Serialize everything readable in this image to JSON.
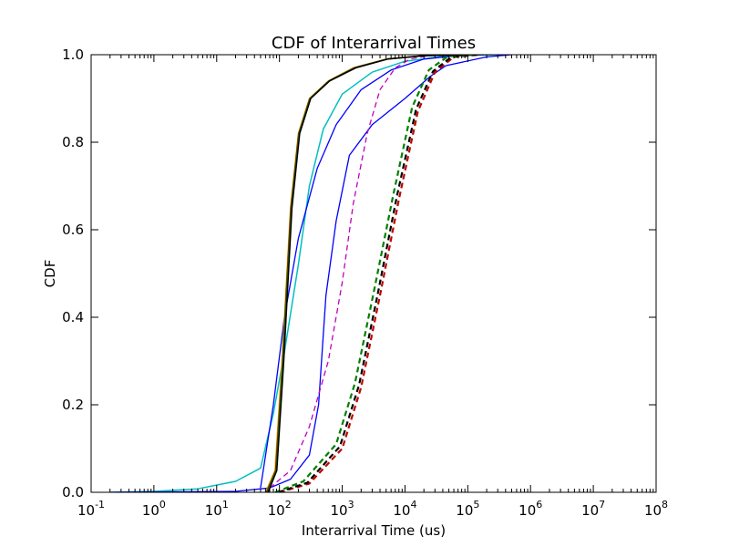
{
  "chart_data": {
    "type": "line",
    "title": "CDF of Interarrival Times",
    "xlabel": "Interarrival Time (us)",
    "ylabel": "CDF",
    "xscale": "log",
    "xlim": [
      0.1,
      100000000
    ],
    "ylim": [
      0,
      1
    ],
    "grid": false,
    "x_ticks": [
      {
        "value": 0.1,
        "base": "10",
        "exp": "-1"
      },
      {
        "value": 1,
        "base": "10",
        "exp": "0"
      },
      {
        "value": 10,
        "base": "10",
        "exp": "1"
      },
      {
        "value": 100,
        "base": "10",
        "exp": "2"
      },
      {
        "value": 1000,
        "base": "10",
        "exp": "3"
      },
      {
        "value": 10000,
        "base": "10",
        "exp": "4"
      },
      {
        "value": 100000,
        "base": "10",
        "exp": "5"
      },
      {
        "value": 1000000,
        "base": "10",
        "exp": "6"
      },
      {
        "value": 10000000,
        "base": "10",
        "exp": "7"
      },
      {
        "value": 100000000,
        "base": "10",
        "exp": "8"
      }
    ],
    "y_ticks": [
      {
        "value": 0.0,
        "label": "0.0"
      },
      {
        "value": 0.2,
        "label": "0.2"
      },
      {
        "value": 0.4,
        "label": "0.4"
      },
      {
        "value": 0.6,
        "label": "0.6"
      },
      {
        "value": 0.8,
        "label": "0.8"
      },
      {
        "value": 1.0,
        "label": "1.0"
      }
    ],
    "series": [
      {
        "color": "#00bfbf",
        "style": "solid",
        "width": 1.5,
        "points": [
          [
            0.2,
            0
          ],
          [
            1,
            0.002
          ],
          [
            5,
            0.008
          ],
          [
            20,
            0.025
          ],
          [
            50,
            0.055
          ],
          [
            80,
            0.18
          ],
          [
            120,
            0.32
          ],
          [
            200,
            0.52
          ],
          [
            300,
            0.7
          ],
          [
            500,
            0.83
          ],
          [
            1000,
            0.91
          ],
          [
            3000,
            0.96
          ],
          [
            10000,
            0.985
          ],
          [
            50000,
            0.998
          ],
          [
            300000,
            1
          ]
        ]
      },
      {
        "color": "#0000ff",
        "style": "solid",
        "width": 1.3,
        "points": [
          [
            50,
            0.01
          ],
          [
            80,
            0.2
          ],
          [
            120,
            0.4
          ],
          [
            200,
            0.58
          ],
          [
            400,
            0.74
          ],
          [
            800,
            0.84
          ],
          [
            2000,
            0.92
          ],
          [
            6000,
            0.965
          ],
          [
            20000,
            0.99
          ],
          [
            80000,
            0.999
          ],
          [
            200000,
            1
          ]
        ]
      },
      {
        "color": "#0000ff",
        "style": "solid",
        "width": 1.3,
        "points": [
          [
            0.2,
            0
          ],
          [
            20,
            0.002
          ],
          [
            70,
            0.01
          ],
          [
            150,
            0.03
          ],
          [
            300,
            0.085
          ],
          [
            420,
            0.2
          ],
          [
            550,
            0.45
          ],
          [
            800,
            0.62
          ],
          [
            1300,
            0.77
          ],
          [
            3000,
            0.84
          ],
          [
            10000,
            0.9
          ],
          [
            25000,
            0.95
          ],
          [
            45000,
            0.975
          ],
          [
            200000,
            0.995
          ],
          [
            500000,
            1
          ]
        ]
      },
      {
        "color": "#bf00bf",
        "style": "dashed",
        "width": 1.3,
        "points": [
          [
            70,
            0.01
          ],
          [
            150,
            0.05
          ],
          [
            300,
            0.15
          ],
          [
            600,
            0.3
          ],
          [
            1000,
            0.48
          ],
          [
            1500,
            0.66
          ],
          [
            2500,
            0.82
          ],
          [
            4000,
            0.92
          ],
          [
            7000,
            0.97
          ],
          [
            12000,
            0.99
          ],
          [
            30000,
            1
          ]
        ]
      },
      {
        "color": "#bf0000",
        "style": "dashed",
        "width": 2.2,
        "points": [
          [
            100,
            0
          ],
          [
            300,
            0.02
          ],
          [
            1000,
            0.1
          ],
          [
            2000,
            0.24
          ],
          [
            4000,
            0.45
          ],
          [
            8000,
            0.67
          ],
          [
            16000,
            0.87
          ],
          [
            30000,
            0.96
          ],
          [
            60000,
            0.995
          ],
          [
            150000,
            1
          ]
        ]
      },
      {
        "color": "#000000",
        "style": "dashed",
        "width": 2.2,
        "points": [
          [
            95,
            0
          ],
          [
            280,
            0.022
          ],
          [
            920,
            0.105
          ],
          [
            1850,
            0.245
          ],
          [
            3700,
            0.455
          ],
          [
            7400,
            0.675
          ],
          [
            15000,
            0.875
          ],
          [
            28000,
            0.962
          ],
          [
            55000,
            0.995
          ],
          [
            140000,
            1
          ]
        ]
      },
      {
        "color": "#008000",
        "style": "dashed",
        "width": 2.2,
        "points": [
          [
            85,
            0
          ],
          [
            240,
            0.025
          ],
          [
            800,
            0.11
          ],
          [
            1600,
            0.25
          ],
          [
            3200,
            0.46
          ],
          [
            6500,
            0.68
          ],
          [
            13000,
            0.88
          ],
          [
            24000,
            0.965
          ],
          [
            48000,
            0.996
          ],
          [
            120000,
            1
          ]
        ]
      },
      {
        "color": "#bfbf00",
        "style": "solid",
        "width": 1.5,
        "points": [
          [
            60,
            0
          ],
          [
            85,
            0.05
          ],
          [
            110,
            0.3
          ],
          [
            150,
            0.65
          ],
          [
            200,
            0.82
          ],
          [
            300,
            0.9
          ],
          [
            600,
            0.94
          ],
          [
            1500,
            0.97
          ],
          [
            5000,
            0.99
          ],
          [
            20000,
            0.998
          ],
          [
            100000,
            1
          ]
        ]
      },
      {
        "color": "#bf0000",
        "style": "solid",
        "width": 1.5,
        "points": [
          [
            62,
            0
          ],
          [
            87,
            0.05
          ],
          [
            112,
            0.3
          ],
          [
            152,
            0.65
          ],
          [
            203,
            0.82
          ],
          [
            305,
            0.9
          ],
          [
            610,
            0.94
          ],
          [
            1550,
            0.97
          ],
          [
            5100,
            0.99
          ],
          [
            20000,
            0.998
          ],
          [
            100000,
            1
          ]
        ]
      },
      {
        "color": "#008000",
        "style": "solid",
        "width": 1.5,
        "points": [
          [
            64,
            0
          ],
          [
            89,
            0.05
          ],
          [
            114,
            0.3
          ],
          [
            155,
            0.65
          ],
          [
            206,
            0.82
          ],
          [
            310,
            0.9
          ],
          [
            620,
            0.94
          ],
          [
            1600,
            0.97
          ],
          [
            5200,
            0.99
          ],
          [
            21000,
            0.998
          ],
          [
            100000,
            1
          ]
        ]
      },
      {
        "color": "#000000",
        "style": "solid",
        "width": 1.5,
        "points": [
          [
            66,
            0
          ],
          [
            91,
            0.05
          ],
          [
            117,
            0.3
          ],
          [
            158,
            0.65
          ],
          [
            210,
            0.82
          ],
          [
            315,
            0.9
          ],
          [
            630,
            0.94
          ],
          [
            1650,
            0.97
          ],
          [
            5300,
            0.99
          ],
          [
            21000,
            0.998
          ],
          [
            100000,
            1
          ]
        ]
      }
    ]
  }
}
